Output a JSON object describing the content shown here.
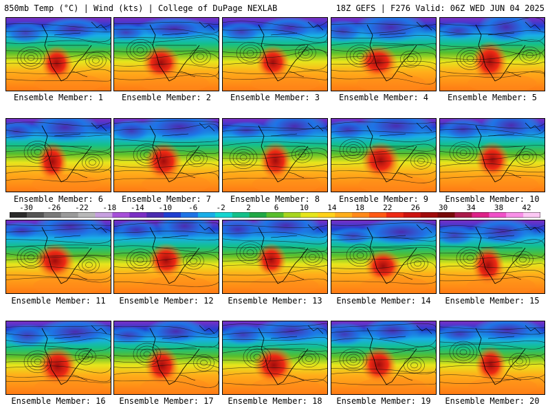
{
  "header": {
    "left_title": "850mb Temp (°C) | Wind (kts) | College of DuPage NEXLAB",
    "right_title": "18Z GEFS | F276 Valid: 06Z WED JUN 04 2025"
  },
  "members": [
    {
      "label": "Ensemble Member: 1"
    },
    {
      "label": "Ensemble Member: 2"
    },
    {
      "label": "Ensemble Member: 3"
    },
    {
      "label": "Ensemble Member: 4"
    },
    {
      "label": "Ensemble Member: 5"
    },
    {
      "label": "Ensemble Member: 6"
    },
    {
      "label": "Ensemble Member: 7"
    },
    {
      "label": "Ensemble Member: 8"
    },
    {
      "label": "Ensemble Member: 9"
    },
    {
      "label": "Ensemble Member: 10"
    },
    {
      "label": "Ensemble Member: 11"
    },
    {
      "label": "Ensemble Member: 12"
    },
    {
      "label": "Ensemble Member: 13"
    },
    {
      "label": "Ensemble Member: 14"
    },
    {
      "label": "Ensemble Member: 15"
    },
    {
      "label": "Ensemble Member: 16"
    },
    {
      "label": "Ensemble Member: 17"
    },
    {
      "label": "Ensemble Member: 18"
    },
    {
      "label": "Ensemble Member: 19"
    },
    {
      "label": "Ensemble Member: 20"
    }
  ],
  "colorbar": {
    "tick_labels": [
      "-30",
      "-26",
      "-22",
      "-18",
      "-14",
      "-10",
      "-6",
      "-2",
      "2",
      "6",
      "10",
      "14",
      "18",
      "22",
      "26",
      "30",
      "34",
      "38",
      "42"
    ],
    "colors": [
      "#2b2b2b",
      "#555555",
      "#7a7a7a",
      "#9a9a9a",
      "#b8b8b8",
      "#c7a0e0",
      "#a64fd9",
      "#7a2fc4",
      "#4a2cb0",
      "#1f3fd1",
      "#1e74e6",
      "#19aee8",
      "#15d6d0",
      "#14c08a",
      "#20a845",
      "#58be2d",
      "#a8d61f",
      "#e6e61c",
      "#ffd21a",
      "#ffae1a",
      "#ff8a1a",
      "#ff5a14",
      "#ee2a14",
      "#cc1410",
      "#a00c0c",
      "#780a0a",
      "#aa1a4a",
      "#dd2288",
      "#f050c8",
      "#f890e8",
      "#fcc8f4"
    ]
  }
}
